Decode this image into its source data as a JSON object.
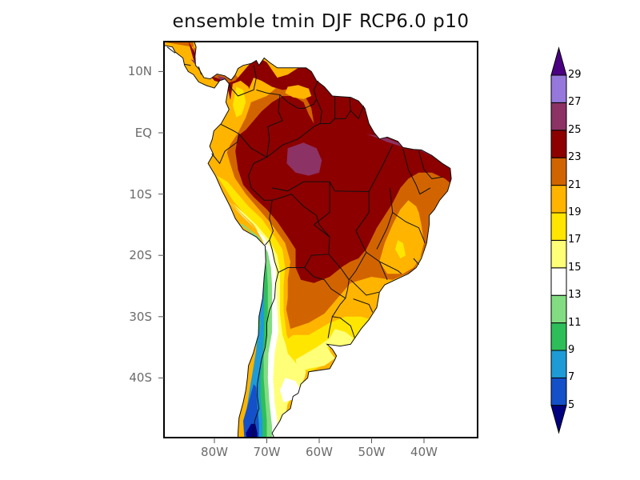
{
  "title": "ensemble tmin DJF RCP6.0 p10",
  "map": {
    "region": "South America",
    "variable": "tmin",
    "season": "DJF",
    "scenario": "RCP6.0",
    "percentile": "p10",
    "lat_range": [
      -50,
      15
    ],
    "lon_range": [
      -90,
      -30
    ],
    "lat_ticks": [
      {
        "value": 10,
        "label": "10N"
      },
      {
        "value": 0,
        "label": "EQ"
      },
      {
        "value": -10,
        "label": "10S"
      },
      {
        "value": -20,
        "label": "20S"
      },
      {
        "value": -30,
        "label": "30S"
      },
      {
        "value": -40,
        "label": "40S"
      }
    ],
    "lon_ticks": [
      {
        "value": -80,
        "label": "80W"
      },
      {
        "value": -70,
        "label": "70W"
      },
      {
        "value": -60,
        "label": "60W"
      },
      {
        "value": -50,
        "label": "50W"
      },
      {
        "value": -40,
        "label": "40W"
      }
    ]
  },
  "colorbar": {
    "levels": [
      "5",
      "7",
      "9",
      "11",
      "13",
      "15",
      "17",
      "19",
      "21",
      "23",
      "25",
      "27",
      "29"
    ],
    "colors": [
      "#000080",
      "#1450c8",
      "#1e9bd7",
      "#2dbe5a",
      "#82dc82",
      "#ffffff",
      "#ffff78",
      "#ffe600",
      "#ffb400",
      "#d26400",
      "#8c0000",
      "#8c3264",
      "#9678dc",
      "#4b0082"
    ],
    "under_color": "#000080",
    "over_color": "#4b0082"
  }
}
